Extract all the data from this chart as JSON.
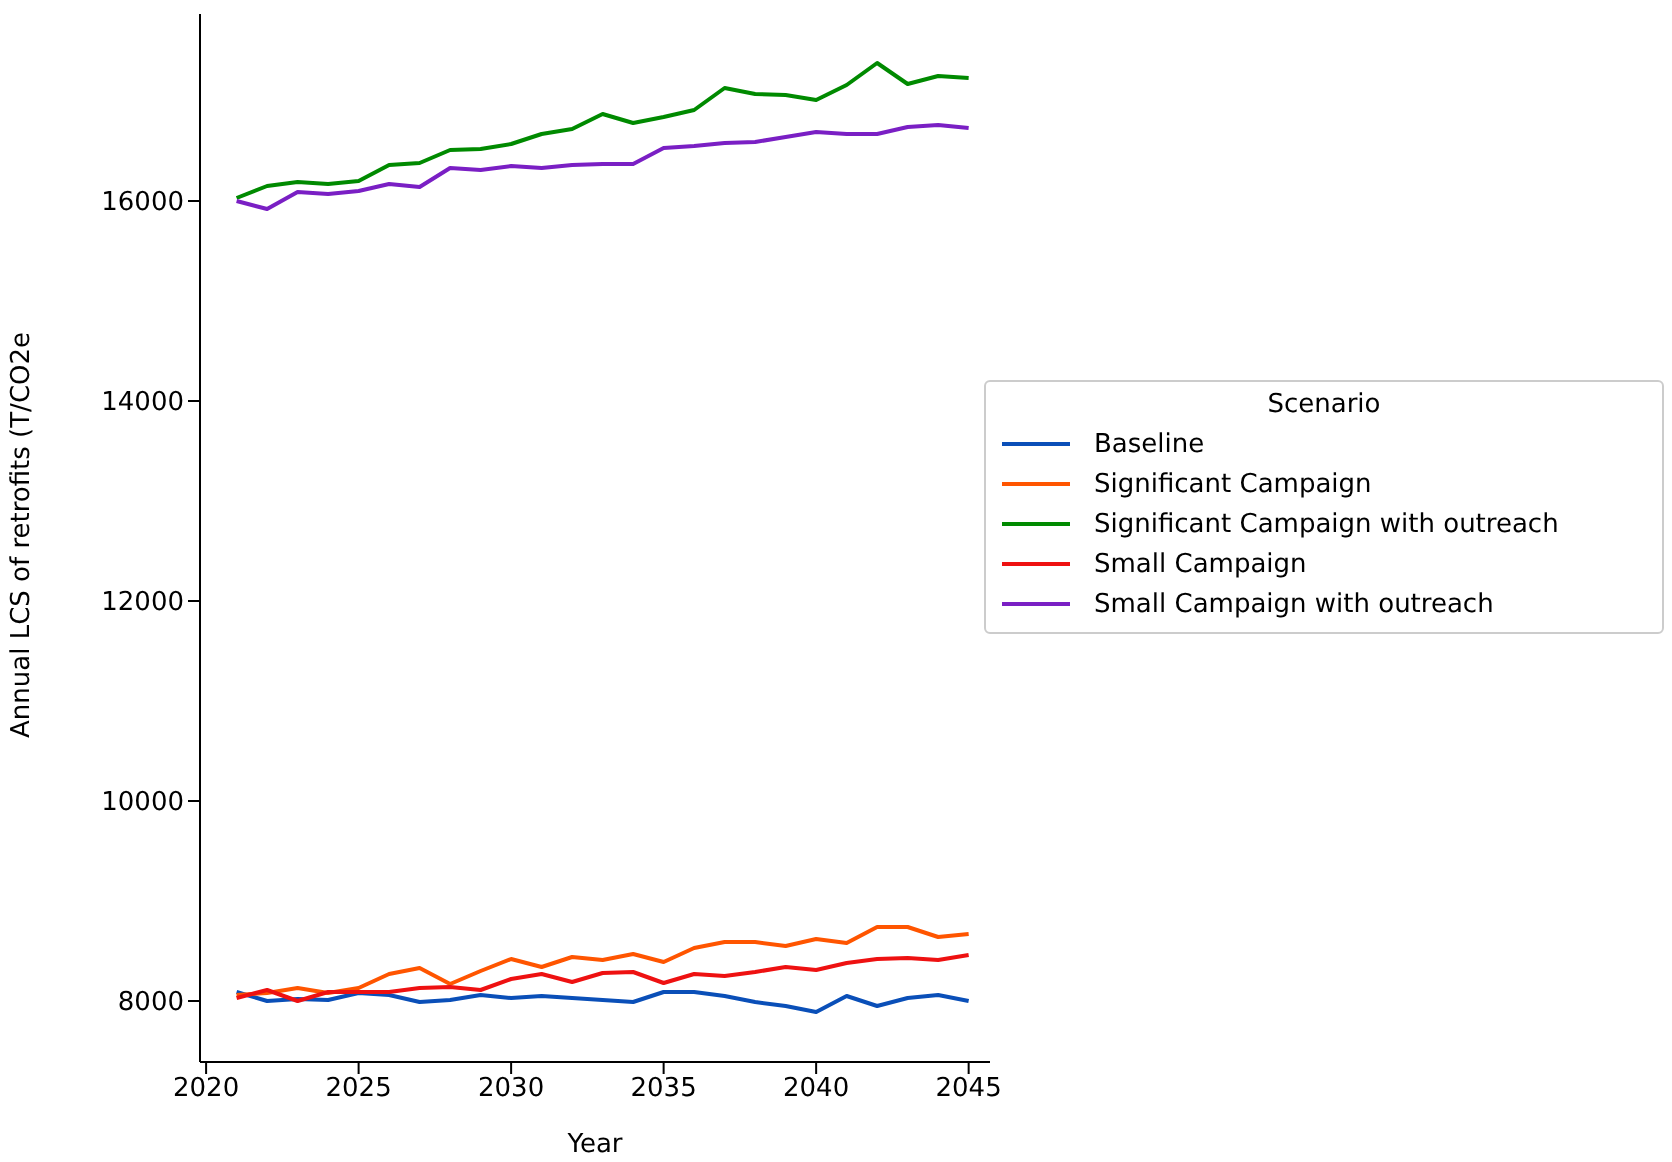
{
  "chart_data": {
    "type": "line",
    "xlabel": "Year",
    "ylabel": "Annual LCS of retrofits (T/CO2e",
    "legend_title": "Scenario",
    "legend": "right",
    "grid": false,
    "x": [
      2021,
      2022,
      2023,
      2024,
      2025,
      2026,
      2027,
      2028,
      2029,
      2030,
      2031,
      2032,
      2033,
      2034,
      2035,
      2036,
      2037,
      2038,
      2039,
      2040,
      2041,
      2042,
      2043,
      2044,
      2045
    ],
    "xlim": [
      2019.8,
      2045.7
    ],
    "xticks": [
      2020,
      2025,
      2030,
      2035,
      2040,
      2045
    ],
    "ylim": [
      7390,
      17870
    ],
    "yticks": [
      8000,
      10000,
      12000,
      14000,
      16000
    ],
    "series": [
      {
        "name": "Baseline",
        "color": "#0a4fb8",
        "values": [
          8090,
          8000,
          8020,
          8010,
          8080,
          8060,
          7990,
          8010,
          8060,
          8030,
          8050,
          8030,
          8010,
          7990,
          8090,
          8090,
          8050,
          7990,
          7950,
          7890,
          8050,
          7950,
          8030,
          8060,
          8000
        ]
      },
      {
        "name": "Significant Campaign",
        "color": "#ff5500",
        "values": [
          8060,
          8080,
          8130,
          8080,
          8130,
          8270,
          8330,
          8170,
          8300,
          8420,
          8340,
          8440,
          8410,
          8470,
          8390,
          8530,
          8590,
          8590,
          8550,
          8620,
          8580,
          8740,
          8740,
          8640,
          8670
        ]
      },
      {
        "name": "Significant Campaign with outreach",
        "color": "#008a00",
        "values": [
          16030,
          16150,
          16190,
          16170,
          16200,
          16360,
          16380,
          16510,
          16520,
          16570,
          16670,
          16720,
          16870,
          16780,
          16840,
          16910,
          17130,
          17070,
          17060,
          17010,
          17160,
          17380,
          17170,
          17250,
          17230
        ]
      },
      {
        "name": "Small Campaign",
        "color": "#ee1111",
        "values": [
          8030,
          8110,
          8000,
          8090,
          8090,
          8090,
          8130,
          8140,
          8110,
          8220,
          8270,
          8190,
          8280,
          8290,
          8180,
          8270,
          8250,
          8290,
          8340,
          8310,
          8380,
          8420,
          8430,
          8410,
          8460
        ]
      },
      {
        "name": "Small Campaign with outreach",
        "color": "#7a1fc4",
        "values": [
          16000,
          15920,
          16090,
          16070,
          16100,
          16170,
          16140,
          16330,
          16310,
          16350,
          16330,
          16360,
          16370,
          16370,
          16530,
          16550,
          16580,
          16590,
          16640,
          16690,
          16670,
          16670,
          16740,
          16760,
          16730
        ]
      }
    ]
  }
}
